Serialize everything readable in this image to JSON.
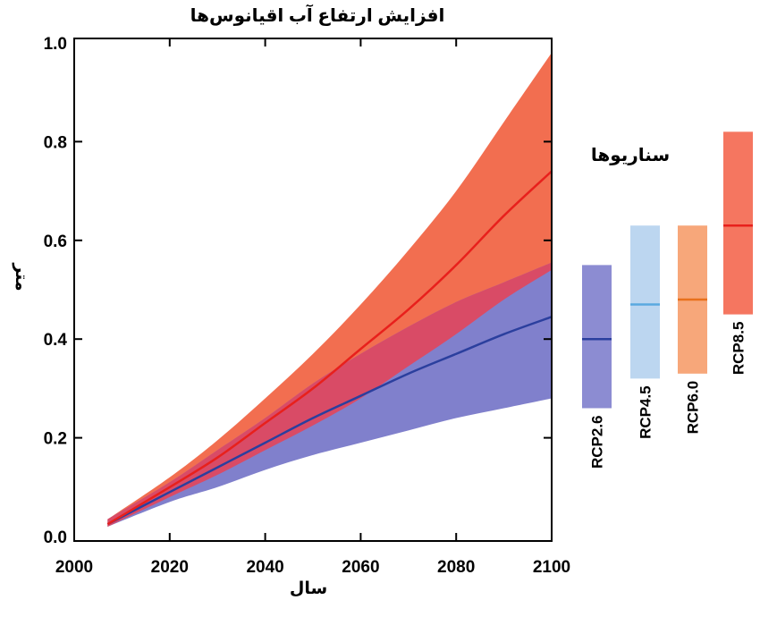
{
  "chart_data": {
    "type": "area",
    "title": "افزایش ارتفاع آب اقیانوس‌ها",
    "xlabel": "سال",
    "ylabel": "متر",
    "xlim": [
      2000,
      2100
    ],
    "ylim": [
      0.0,
      1.0
    ],
    "x_ticks": [
      "2000",
      "2020",
      "2040",
      "2060",
      "2080",
      "2100"
    ],
    "y_ticks": [
      "0.0",
      "0.2",
      "0.4",
      "0.6",
      "0.8",
      "1.0"
    ],
    "x": [
      2007,
      2020,
      2030,
      2040,
      2050,
      2060,
      2070,
      2080,
      2090,
      2100
    ],
    "series": [
      {
        "name": "RCP8.5",
        "color": "#f26e50",
        "line_color": "#e8201c",
        "mean": [
          0.025,
          0.1,
          0.16,
          0.23,
          0.3,
          0.38,
          0.46,
          0.55,
          0.65,
          0.74
        ],
        "lower": [
          0.02,
          0.08,
          0.125,
          0.175,
          0.225,
          0.28,
          0.345,
          0.41,
          0.48,
          0.54
        ],
        "upper": [
          0.035,
          0.12,
          0.195,
          0.28,
          0.37,
          0.47,
          0.58,
          0.7,
          0.84,
          0.98
        ]
      },
      {
        "name": "RCP2.6",
        "color": "#8080cc",
        "line_color": "#2b3f9e",
        "mean": [
          0.025,
          0.09,
          0.14,
          0.19,
          0.24,
          0.285,
          0.33,
          0.37,
          0.41,
          0.445
        ],
        "lower": [
          0.02,
          0.07,
          0.1,
          0.135,
          0.165,
          0.19,
          0.215,
          0.24,
          0.26,
          0.28
        ],
        "upper": [
          0.035,
          0.11,
          0.175,
          0.24,
          0.31,
          0.37,
          0.425,
          0.475,
          0.515,
          0.555
        ]
      }
    ],
    "scenarios_title": "سناریوها",
    "scenarios": [
      {
        "name": "RCP2.6",
        "color": "#8c8cd2",
        "line_color": "#2b3f9e",
        "low": 0.26,
        "high": 0.55,
        "mean": 0.4
      },
      {
        "name": "RCP4.5",
        "color": "#bcd6f0",
        "line_color": "#5aa9e0",
        "low": 0.32,
        "high": 0.63,
        "mean": 0.47
      },
      {
        "name": "RCP6.0",
        "color": "#f7a77a",
        "line_color": "#e8701c",
        "low": 0.33,
        "high": 0.63,
        "mean": 0.48
      },
      {
        "name": "RCP8.5",
        "color": "#f57660",
        "line_color": "#e8201c",
        "low": 0.45,
        "high": 0.82,
        "mean": 0.63
      }
    ]
  }
}
